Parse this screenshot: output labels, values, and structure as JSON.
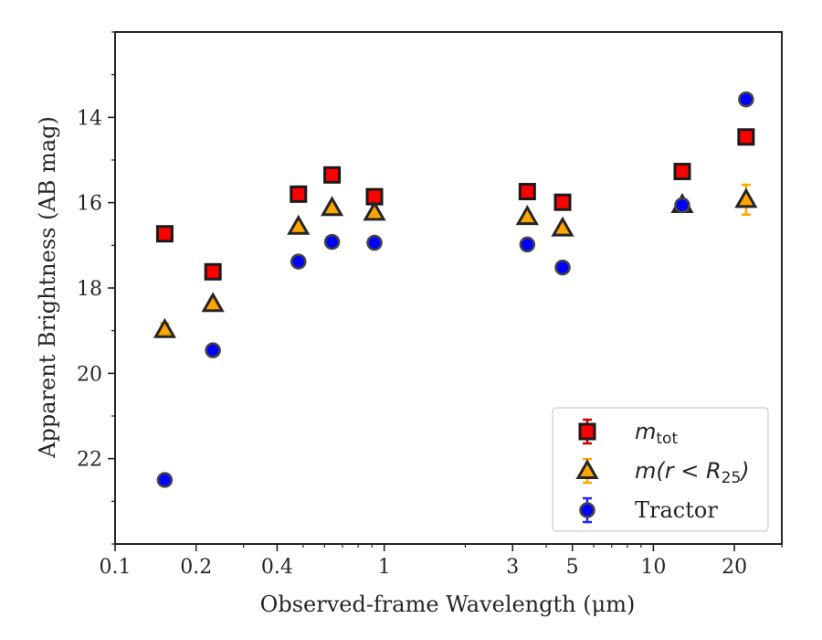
{
  "chart_data": {
    "type": "scatter",
    "title": "",
    "xlabel": "Observed-frame Wavelength (μm)",
    "ylabel": "Apparent Brightness (AB mag)",
    "xscale": "log",
    "xlim": [
      0.1,
      30
    ],
    "ylim": [
      24,
      12
    ],
    "y_inverted": true,
    "xticks": [
      {
        "value": 0.1,
        "label": "0.1"
      },
      {
        "value": 0.2,
        "label": "0.2"
      },
      {
        "value": 0.4,
        "label": "0.4"
      },
      {
        "value": 1,
        "label": "1"
      },
      {
        "value": 3,
        "label": "3"
      },
      {
        "value": 5,
        "label": "5"
      },
      {
        "value": 10,
        "label": "10"
      },
      {
        "value": 20,
        "label": "20"
      }
    ],
    "yticks": [
      {
        "value": 14,
        "label": "14"
      },
      {
        "value": 16,
        "label": "16"
      },
      {
        "value": 18,
        "label": "18"
      },
      {
        "value": 20,
        "label": "20"
      },
      {
        "value": 22,
        "label": "22"
      }
    ],
    "grid": false,
    "legend_position": "lower-right",
    "series": [
      {
        "name": "m_tot",
        "legend_main": "m",
        "legend_sub": "tot",
        "marker": "square",
        "color": "#ff0000",
        "edge": "#1a1a1a",
        "errcolor": "#cc0000",
        "x": [
          0.153,
          0.231,
          0.48,
          0.64,
          0.92,
          3.4,
          4.6,
          12.8,
          22.1
        ],
        "y": [
          16.73,
          17.62,
          15.8,
          15.35,
          15.86,
          15.74,
          15.99,
          15.27,
          14.46
        ],
        "err": [
          0.05,
          0.05,
          0.03,
          0.03,
          0.03,
          0.03,
          0.03,
          0.03,
          0.05
        ]
      },
      {
        "name": "m(r < R25)",
        "legend_main": "m(r < R",
        "legend_sub": "25",
        "legend_close": ")",
        "marker": "triangle",
        "color": "#ffa500",
        "edge": "#262626",
        "errcolor": "#ffa500",
        "x": [
          0.153,
          0.231,
          0.48,
          0.64,
          0.92,
          3.4,
          4.6,
          12.8,
          22.1
        ],
        "y": [
          18.98,
          18.37,
          16.56,
          16.12,
          16.23,
          16.33,
          16.6,
          16.05,
          15.93
        ],
        "err": [
          0.15,
          0.08,
          0.04,
          0.04,
          0.04,
          0.04,
          0.05,
          0.05,
          0.35
        ]
      },
      {
        "name": "Tractor",
        "legend_main": "Tractor",
        "marker": "circle",
        "color": "#0000ff",
        "edge": "#444444",
        "errcolor": "#2222ff",
        "x": [
          0.153,
          0.231,
          0.48,
          0.64,
          0.92,
          3.4,
          4.6,
          12.8,
          22.1
        ],
        "y": [
          22.5,
          19.46,
          17.38,
          16.92,
          16.94,
          16.98,
          17.52,
          16.06,
          13.58
        ],
        "err": [
          0.02,
          0.02,
          0.02,
          0.02,
          0.02,
          0.02,
          0.02,
          0.02,
          0.02
        ]
      }
    ]
  }
}
